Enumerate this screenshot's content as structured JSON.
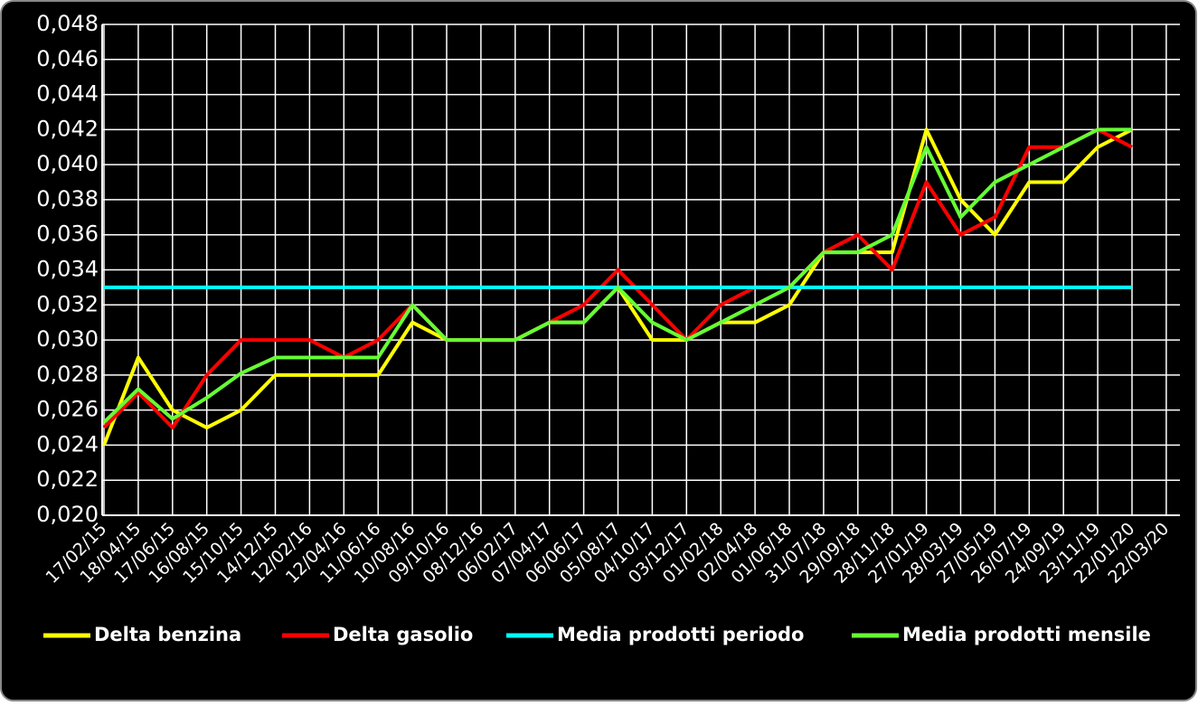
{
  "chart_data": {
    "type": "line",
    "categories": [
      "17/02/15",
      "18/04/15",
      "17/06/15",
      "16/08/15",
      "15/10/15",
      "14/12/15",
      "12/02/16",
      "12/04/16",
      "11/06/16",
      "10/08/16",
      "09/10/16",
      "08/12/16",
      "06/02/17",
      "07/04/17",
      "06/06/17",
      "05/08/17",
      "04/10/17",
      "03/12/17",
      "01/02/18",
      "02/04/18",
      "01/06/18",
      "31/07/18",
      "29/09/18",
      "28/11/18",
      "27/01/19",
      "28/03/19",
      "27/05/19",
      "26/07/19",
      "24/09/19",
      "23/11/19",
      "22/01/20",
      "22/03/20"
    ],
    "series": [
      {
        "name": "Delta benzina",
        "color": "#ffff00",
        "values": [
          0.024,
          0.029,
          0.026,
          0.025,
          0.026,
          0.028,
          0.028,
          0.028,
          0.028,
          0.031,
          0.03,
          0.03,
          0.03,
          0.031,
          0.031,
          0.033,
          0.03,
          0.03,
          0.031,
          0.031,
          0.032,
          0.035,
          0.035,
          0.035,
          0.042,
          0.038,
          0.036,
          0.039,
          0.039,
          0.041,
          0.042,
          null
        ]
      },
      {
        "name": "Delta gasolio",
        "color": "#ff0000",
        "values": [
          0.025,
          0.027,
          0.025,
          0.028,
          0.03,
          0.03,
          0.03,
          0.029,
          0.03,
          0.032,
          0.03,
          0.03,
          0.03,
          0.031,
          0.032,
          0.034,
          0.032,
          0.03,
          0.032,
          0.033,
          0.033,
          0.035,
          0.036,
          0.034,
          0.039,
          0.036,
          0.037,
          0.041,
          0.041,
          0.042,
          0.041,
          null
        ]
      },
      {
        "name": "Media prodotti periodo",
        "color": "#00ffff",
        "values": [
          0.033,
          0.033,
          0.033,
          0.033,
          0.033,
          0.033,
          0.033,
          0.033,
          0.033,
          0.033,
          0.033,
          0.033,
          0.033,
          0.033,
          0.033,
          0.033,
          0.033,
          0.033,
          0.033,
          0.033,
          0.033,
          0.033,
          0.033,
          0.033,
          0.033,
          0.033,
          0.033,
          0.033,
          0.033,
          0.033,
          0.033,
          null
        ]
      },
      {
        "name": "Media prodotti mensile",
        "color": "#66ff33",
        "values": [
          0.0253,
          0.0272,
          0.0255,
          0.0267,
          0.0281,
          0.029,
          0.029,
          0.029,
          0.029,
          0.032,
          0.03,
          0.03,
          0.03,
          0.031,
          0.031,
          0.033,
          0.031,
          0.03,
          0.031,
          0.032,
          0.033,
          0.035,
          0.035,
          0.036,
          0.041,
          0.037,
          0.039,
          0.04,
          0.041,
          0.042,
          0.042,
          null
        ]
      }
    ],
    "ylim": [
      0.02,
      0.048
    ],
    "yticks": [
      {
        "value": 0.02,
        "label": "0,020"
      },
      {
        "value": 0.022,
        "label": "0,022"
      },
      {
        "value": 0.024,
        "label": "0,024"
      },
      {
        "value": 0.026,
        "label": "0,026"
      },
      {
        "value": 0.028,
        "label": "0,028"
      },
      {
        "value": 0.03,
        "label": "0,030"
      },
      {
        "value": 0.032,
        "label": "0,032"
      },
      {
        "value": 0.034,
        "label": "0,034"
      },
      {
        "value": 0.036,
        "label": "0,036"
      },
      {
        "value": 0.038,
        "label": "0,038"
      },
      {
        "value": 0.04,
        "label": "0,040"
      },
      {
        "value": 0.042,
        "label": "0,042"
      },
      {
        "value": 0.044,
        "label": "0,044"
      },
      {
        "value": 0.046,
        "label": "0,046"
      },
      {
        "value": 0.048,
        "label": "0,048"
      }
    ],
    "grid": true,
    "legend": "bottom"
  }
}
